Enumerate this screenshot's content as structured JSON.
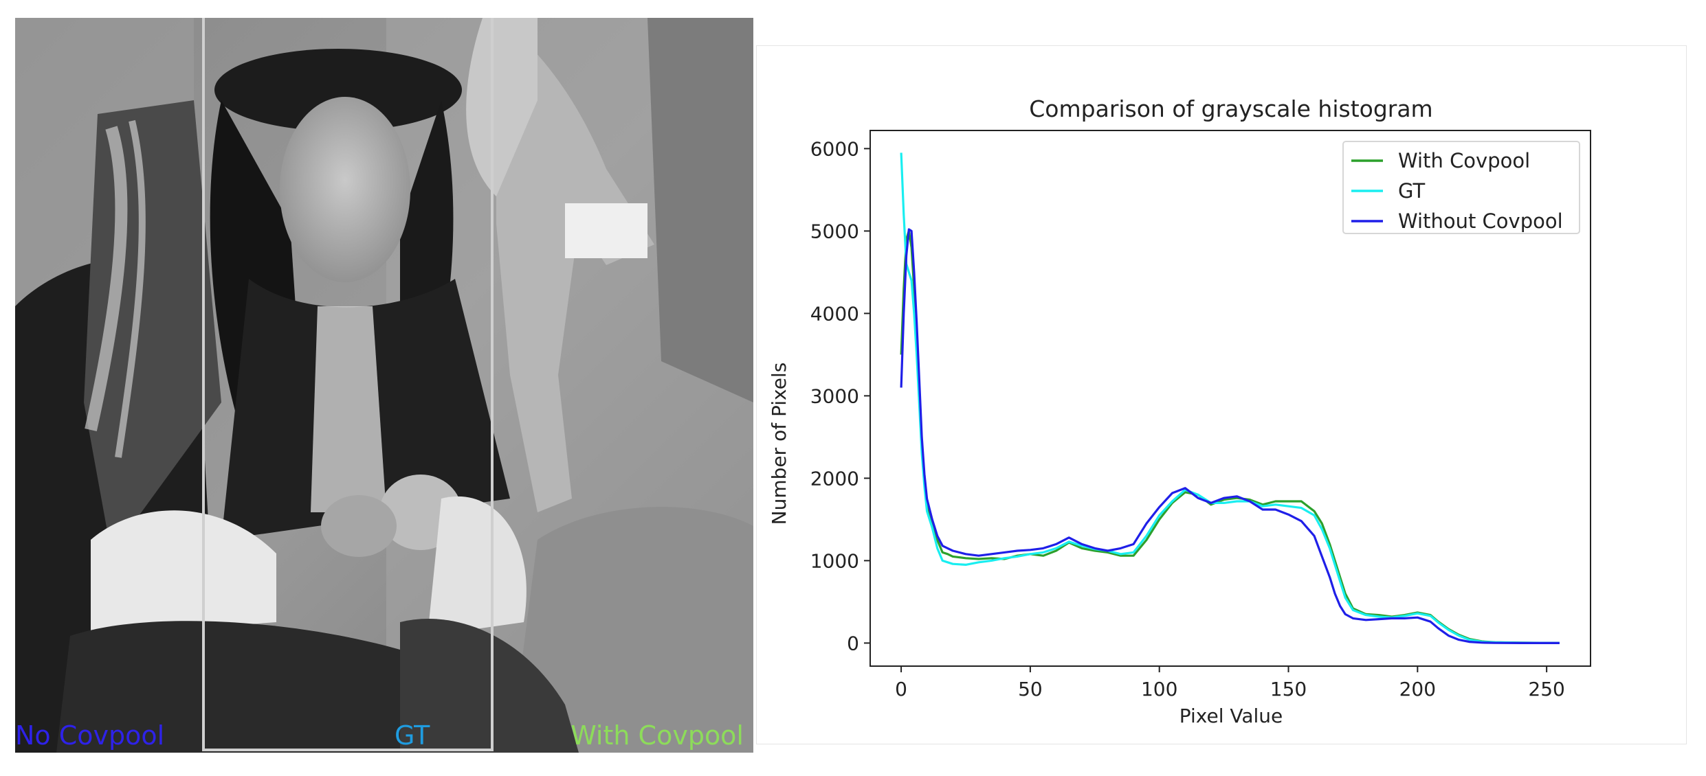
{
  "photo_panel": {
    "labels": {
      "left": "No Covpool",
      "middle": "GT",
      "right": "With Covpool"
    },
    "label_colors": {
      "left": "#2e22e8",
      "middle": "#1f9ce0",
      "right": "#8ddc5a"
    }
  },
  "chart_data": {
    "type": "line",
    "title": "Comparison of grayscale histogram",
    "xlabel": "Pixel Value",
    "ylabel": "Number of Pixels",
    "xlim": [
      -12,
      267
    ],
    "ylim": [
      -280,
      6220
    ],
    "xticks": [
      0,
      50,
      100,
      150,
      200,
      250
    ],
    "yticks": [
      0,
      1000,
      2000,
      3000,
      4000,
      5000,
      6000
    ],
    "grid": false,
    "legend_position": "top-right",
    "series": [
      {
        "name": "With Covpool",
        "color": "#2ca02c",
        "points": [
          [
            0,
            3500
          ],
          [
            1,
            4300
          ],
          [
            2,
            4900
          ],
          [
            3,
            5000
          ],
          [
            4,
            4800
          ],
          [
            5,
            4300
          ],
          [
            6,
            3700
          ],
          [
            7,
            3000
          ],
          [
            8,
            2400
          ],
          [
            9,
            2000
          ],
          [
            10,
            1700
          ],
          [
            12,
            1450
          ],
          [
            14,
            1250
          ],
          [
            16,
            1100
          ],
          [
            18,
            1080
          ],
          [
            20,
            1050
          ],
          [
            25,
            1030
          ],
          [
            30,
            1020
          ],
          [
            35,
            1030
          ],
          [
            40,
            1020
          ],
          [
            45,
            1060
          ],
          [
            50,
            1080
          ],
          [
            55,
            1060
          ],
          [
            60,
            1120
          ],
          [
            65,
            1220
          ],
          [
            70,
            1150
          ],
          [
            75,
            1120
          ],
          [
            80,
            1100
          ],
          [
            85,
            1060
          ],
          [
            90,
            1060
          ],
          [
            95,
            1250
          ],
          [
            100,
            1500
          ],
          [
            105,
            1700
          ],
          [
            110,
            1830
          ],
          [
            115,
            1800
          ],
          [
            120,
            1680
          ],
          [
            125,
            1740
          ],
          [
            130,
            1760
          ],
          [
            135,
            1740
          ],
          [
            140,
            1680
          ],
          [
            145,
            1720
          ],
          [
            150,
            1720
          ],
          [
            155,
            1720
          ],
          [
            160,
            1600
          ],
          [
            163,
            1450
          ],
          [
            166,
            1200
          ],
          [
            168,
            1000
          ],
          [
            170,
            800
          ],
          [
            172,
            600
          ],
          [
            175,
            420
          ],
          [
            180,
            350
          ],
          [
            185,
            340
          ],
          [
            190,
            320
          ],
          [
            195,
            340
          ],
          [
            200,
            370
          ],
          [
            205,
            340
          ],
          [
            208,
            260
          ],
          [
            212,
            170
          ],
          [
            216,
            100
          ],
          [
            220,
            50
          ],
          [
            225,
            20
          ],
          [
            230,
            10
          ],
          [
            240,
            5
          ],
          [
            255,
            0
          ]
        ]
      },
      {
        "name": "GT",
        "color": "#19eef0",
        "points": [
          [
            0,
            5950
          ],
          [
            1,
            5200
          ],
          [
            2,
            4600
          ],
          [
            3,
            4500
          ],
          [
            4,
            4400
          ],
          [
            5,
            4000
          ],
          [
            6,
            3500
          ],
          [
            7,
            2900
          ],
          [
            8,
            2300
          ],
          [
            9,
            1900
          ],
          [
            10,
            1600
          ],
          [
            12,
            1400
          ],
          [
            14,
            1150
          ],
          [
            16,
            1000
          ],
          [
            18,
            980
          ],
          [
            20,
            960
          ],
          [
            25,
            950
          ],
          [
            30,
            980
          ],
          [
            35,
            1000
          ],
          [
            40,
            1030
          ],
          [
            45,
            1050
          ],
          [
            50,
            1080
          ],
          [
            55,
            1100
          ],
          [
            60,
            1150
          ],
          [
            65,
            1230
          ],
          [
            70,
            1180
          ],
          [
            75,
            1140
          ],
          [
            80,
            1120
          ],
          [
            85,
            1080
          ],
          [
            90,
            1100
          ],
          [
            95,
            1300
          ],
          [
            100,
            1550
          ],
          [
            105,
            1720
          ],
          [
            110,
            1860
          ],
          [
            115,
            1800
          ],
          [
            120,
            1700
          ],
          [
            125,
            1700
          ],
          [
            130,
            1720
          ],
          [
            135,
            1720
          ],
          [
            140,
            1660
          ],
          [
            145,
            1680
          ],
          [
            150,
            1660
          ],
          [
            155,
            1640
          ],
          [
            160,
            1550
          ],
          [
            163,
            1380
          ],
          [
            166,
            1150
          ],
          [
            168,
            950
          ],
          [
            170,
            750
          ],
          [
            172,
            550
          ],
          [
            175,
            400
          ],
          [
            180,
            340
          ],
          [
            185,
            320
          ],
          [
            190,
            310
          ],
          [
            195,
            330
          ],
          [
            200,
            360
          ],
          [
            205,
            330
          ],
          [
            208,
            250
          ],
          [
            212,
            160
          ],
          [
            216,
            90
          ],
          [
            220,
            40
          ],
          [
            225,
            15
          ],
          [
            230,
            8
          ],
          [
            240,
            3
          ],
          [
            255,
            0
          ]
        ]
      },
      {
        "name": "Without Covpool",
        "color": "#1f1fe8",
        "points": [
          [
            0,
            3100
          ],
          [
            1,
            4000
          ],
          [
            2,
            4700
          ],
          [
            3,
            5020
          ],
          [
            4,
            5000
          ],
          [
            5,
            4500
          ],
          [
            6,
            3900
          ],
          [
            7,
            3200
          ],
          [
            8,
            2500
          ],
          [
            9,
            2050
          ],
          [
            10,
            1750
          ],
          [
            12,
            1500
          ],
          [
            14,
            1300
          ],
          [
            16,
            1180
          ],
          [
            18,
            1150
          ],
          [
            20,
            1120
          ],
          [
            25,
            1080
          ],
          [
            30,
            1060
          ],
          [
            35,
            1080
          ],
          [
            40,
            1100
          ],
          [
            45,
            1120
          ],
          [
            50,
            1130
          ],
          [
            55,
            1150
          ],
          [
            60,
            1200
          ],
          [
            65,
            1280
          ],
          [
            70,
            1200
          ],
          [
            75,
            1150
          ],
          [
            80,
            1120
          ],
          [
            85,
            1150
          ],
          [
            90,
            1200
          ],
          [
            95,
            1450
          ],
          [
            100,
            1650
          ],
          [
            105,
            1820
          ],
          [
            110,
            1880
          ],
          [
            115,
            1760
          ],
          [
            120,
            1700
          ],
          [
            125,
            1760
          ],
          [
            130,
            1780
          ],
          [
            135,
            1720
          ],
          [
            140,
            1620
          ],
          [
            145,
            1620
          ],
          [
            150,
            1560
          ],
          [
            155,
            1480
          ],
          [
            160,
            1300
          ],
          [
            163,
            1050
          ],
          [
            166,
            800
          ],
          [
            168,
            600
          ],
          [
            170,
            450
          ],
          [
            172,
            350
          ],
          [
            175,
            300
          ],
          [
            180,
            280
          ],
          [
            185,
            290
          ],
          [
            190,
            300
          ],
          [
            195,
            300
          ],
          [
            200,
            310
          ],
          [
            205,
            260
          ],
          [
            208,
            180
          ],
          [
            212,
            90
          ],
          [
            216,
            40
          ],
          [
            220,
            15
          ],
          [
            225,
            5
          ],
          [
            230,
            2
          ],
          [
            240,
            0
          ],
          [
            255,
            0
          ]
        ]
      }
    ]
  }
}
